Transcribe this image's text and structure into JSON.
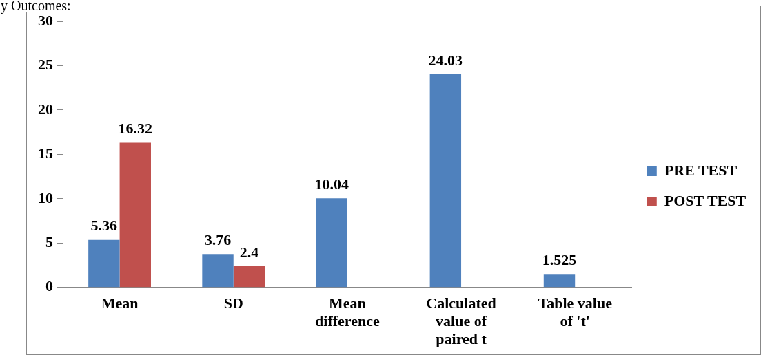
{
  "chart_data": {
    "type": "bar",
    "categories": [
      "Mean",
      "SD",
      "Mean difference",
      "Calculated value of paired t",
      "Table value of 't'"
    ],
    "series": [
      {
        "name": "PRE TEST",
        "color": "#4f81bd",
        "values": [
          5.36,
          3.76,
          10.04,
          24.03,
          1.525
        ]
      },
      {
        "name": "POST TEST",
        "color": "#c0504d",
        "values": [
          16.32,
          2.4,
          null,
          null,
          null
        ]
      }
    ],
    "ylim": [
      0,
      30
    ],
    "yticks": [
      0,
      5,
      10,
      15,
      20,
      25,
      30
    ],
    "grid": false,
    "legend": "right",
    "data_labels": true,
    "annotations": [
      "y Outcomes:"
    ]
  }
}
